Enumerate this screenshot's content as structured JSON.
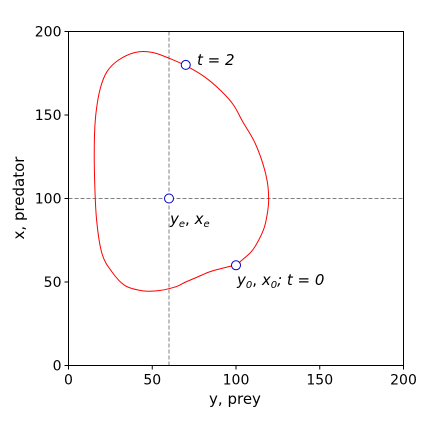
{
  "chart_data": {
    "type": "line",
    "xlabel": "y, prey",
    "ylabel": "x, predator",
    "xlim": [
      0,
      200
    ],
    "ylim": [
      0,
      200
    ],
    "xticks": [
      "0",
      "50",
      "100",
      "150",
      "200"
    ],
    "yticks": [
      "0",
      "50",
      "100",
      "150",
      "200"
    ],
    "grid": false,
    "colors": {
      "orbit": "#ff0000",
      "marker_edge": "#0000cc",
      "reference_line": "#808080"
    },
    "equilibrium_lines": {
      "y": 60,
      "x": 100
    },
    "orbit": {
      "x": [
        100,
        104,
        109,
        113,
        117,
        119,
        119.5,
        118.7,
        116,
        111,
        104,
        98.5,
        91,
        81,
        70,
        60,
        50,
        40,
        30,
        23,
        19,
        16.5,
        15.5,
        15.5,
        16.7,
        20,
        26,
        33.5,
        42.5,
        48.5,
        55,
        60,
        65,
        70,
        77,
        84,
        91,
        97,
        100
      ],
      "y": [
        60,
        63.5,
        68,
        74,
        83,
        93,
        100,
        110,
        121,
        134,
        146,
        156,
        164.5,
        173,
        179.5,
        184,
        187.5,
        187.5,
        183,
        176,
        166,
        152,
        137,
        115,
        88,
        67,
        56,
        48,
        45,
        44.5,
        45,
        46,
        47.5,
        50,
        53,
        56,
        58,
        59.5,
        60
      ]
    },
    "points": [
      {
        "y": 70,
        "x": 180,
        "label_text": "t = 2"
      },
      {
        "y": 60,
        "x": 100,
        "label_main": "y",
        "label_main_sub": "e",
        "label_sep": ", ",
        "label_second": "x",
        "label_second_sub": "e"
      },
      {
        "y": 100,
        "x": 60,
        "label_main": "y",
        "label_main_sub": "0",
        "label_sep": ", ",
        "label_second": "x",
        "label_second_sub": "0",
        "label_tail": ";  t = 0"
      }
    ]
  }
}
